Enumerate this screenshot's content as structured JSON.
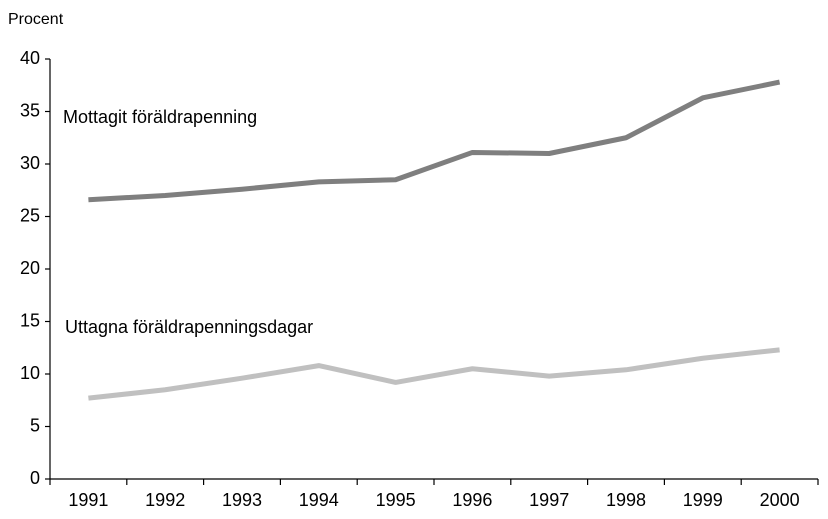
{
  "chart_data": {
    "type": "line",
    "y_label": "Procent",
    "categories": [
      "1991",
      "1992",
      "1993",
      "1994",
      "1995",
      "1996",
      "1997",
      "1998",
      "1999",
      "2000"
    ],
    "series": [
      {
        "name": "Mottagit föräldrapenning",
        "color": "#7f7f7f",
        "values": [
          26.6,
          27.0,
          27.6,
          28.3,
          28.5,
          31.1,
          31.0,
          32.5,
          36.3,
          37.8
        ]
      },
      {
        "name": "Uttagna föräldrapenningsdagar",
        "color": "#c0c0c0",
        "values": [
          7.7,
          8.5,
          9.6,
          10.8,
          9.2,
          10.5,
          9.8,
          10.4,
          11.5,
          12.3
        ]
      }
    ],
    "ylim": [
      0,
      40
    ],
    "yticks": [
      0,
      5,
      10,
      15,
      20,
      25,
      30,
      35,
      40
    ],
    "grid": false
  }
}
